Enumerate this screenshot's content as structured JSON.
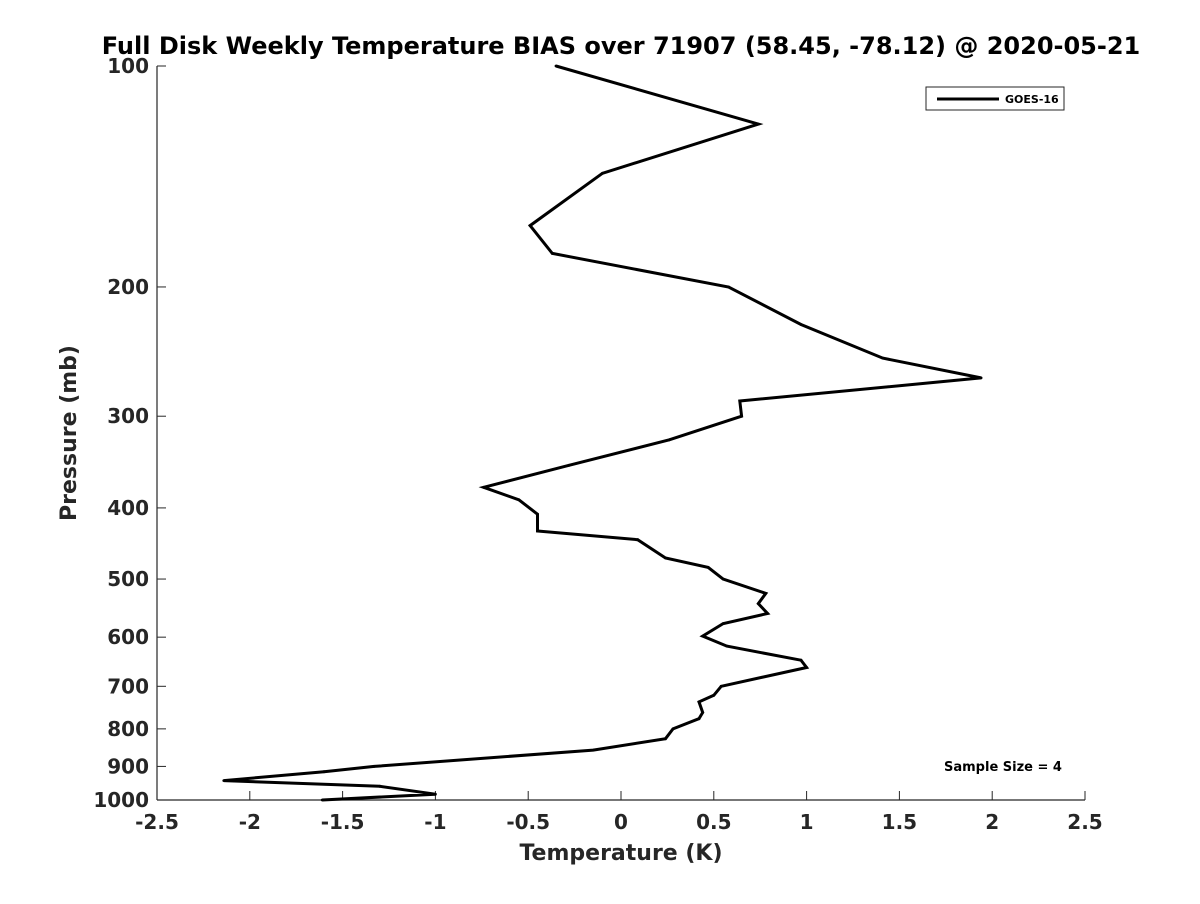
{
  "chart_data": {
    "type": "line",
    "title": "Full Disk Weekly Temperature BIAS over 71907 (58.45, -78.12) @ 2020-05-21",
    "xlabel": "Temperature (K)",
    "ylabel": "Pressure (mb)",
    "xlim": [
      -2.5,
      2.5
    ],
    "ylim": [
      100,
      1000
    ],
    "y_scale": "log",
    "y_reversed": true,
    "x_ticks": [
      -2.5,
      -2,
      -1.5,
      -1,
      -0.5,
      0,
      0.5,
      1,
      1.5,
      2,
      2.5
    ],
    "x_tick_labels": [
      "-2.5",
      "-2",
      "-1.5",
      "-1",
      "-0.5",
      "0",
      "0.5",
      "1",
      "1.5",
      "2",
      "2.5"
    ],
    "y_ticks": [
      100,
      200,
      300,
      400,
      500,
      600,
      700,
      800,
      900,
      1000
    ],
    "y_tick_labels": [
      "100",
      "200",
      "300",
      "400",
      "500",
      "600",
      "700",
      "800",
      "900",
      "1000"
    ],
    "grid": false,
    "legend_position": "top-right",
    "annotation": "Sample Size = 4",
    "series": [
      {
        "name": "GOES-16",
        "color": "#000000",
        "points": [
          {
            "x": -0.35,
            "y": 100
          },
          {
            "x": 0.74,
            "y": 120
          },
          {
            "x": -0.1,
            "y": 140
          },
          {
            "x": -0.49,
            "y": 165
          },
          {
            "x": -0.37,
            "y": 180
          },
          {
            "x": 0.58,
            "y": 200
          },
          {
            "x": 0.97,
            "y": 225
          },
          {
            "x": 1.41,
            "y": 250
          },
          {
            "x": 1.94,
            "y": 266
          },
          {
            "x": 0.64,
            "y": 286
          },
          {
            "x": 0.65,
            "y": 300
          },
          {
            "x": 0.26,
            "y": 323
          },
          {
            "x": -0.28,
            "y": 350
          },
          {
            "x": -0.74,
            "y": 375
          },
          {
            "x": -0.55,
            "y": 390
          },
          {
            "x": -0.45,
            "y": 408
          },
          {
            "x": -0.45,
            "y": 430
          },
          {
            "x": 0.09,
            "y": 442
          },
          {
            "x": 0.24,
            "y": 468
          },
          {
            "x": 0.47,
            "y": 482
          },
          {
            "x": 0.55,
            "y": 500
          },
          {
            "x": 0.78,
            "y": 523
          },
          {
            "x": 0.74,
            "y": 540
          },
          {
            "x": 0.79,
            "y": 557
          },
          {
            "x": 0.55,
            "y": 575
          },
          {
            "x": 0.44,
            "y": 598
          },
          {
            "x": 0.57,
            "y": 617
          },
          {
            "x": 0.97,
            "y": 645
          },
          {
            "x": 1.0,
            "y": 660
          },
          {
            "x": 0.54,
            "y": 700
          },
          {
            "x": 0.5,
            "y": 720
          },
          {
            "x": 0.42,
            "y": 735
          },
          {
            "x": 0.44,
            "y": 760
          },
          {
            "x": 0.42,
            "y": 775
          },
          {
            "x": 0.28,
            "y": 800
          },
          {
            "x": 0.24,
            "y": 825
          },
          {
            "x": -0.15,
            "y": 855
          },
          {
            "x": -1.33,
            "y": 900
          },
          {
            "x": -1.6,
            "y": 915
          },
          {
            "x": -2.14,
            "y": 941
          },
          {
            "x": -1.3,
            "y": 958
          },
          {
            "x": -1.0,
            "y": 982
          },
          {
            "x": -1.61,
            "y": 1000
          }
        ]
      }
    ]
  }
}
